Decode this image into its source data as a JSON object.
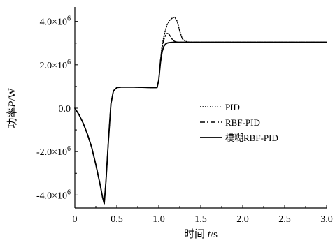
{
  "chart_data": {
    "type": "line",
    "title": "",
    "xlabel": "时间 t/s",
    "ylabel": "功率P/W",
    "xlim": [
      0,
      3.0
    ],
    "ylim": [
      -4600000.0,
      4600000.0
    ],
    "x_ticks": [
      0,
      0.5,
      1.0,
      1.5,
      2.0,
      2.5,
      3.0
    ],
    "x_tick_labels": [
      "0",
      "0.5",
      "1.0",
      "1.5",
      "2.0",
      "2.5",
      "3.0"
    ],
    "y_ticks": [
      -4000000.0,
      -2000000.0,
      0,
      2000000.0,
      4000000.0
    ],
    "y_tick_labels": [
      "-4.0×10⁶",
      "-2.0×10⁶",
      "0.0",
      "2.0×10⁶",
      "4.0×10⁶"
    ],
    "grid": false,
    "legend_position": "right-center",
    "series": [
      {
        "name": "PID",
        "style": "dotted",
        "color": "#000000",
        "x": [
          0,
          0.05,
          0.1,
          0.15,
          0.2,
          0.25,
          0.3,
          0.33,
          0.35,
          0.37,
          0.4,
          0.43,
          0.46,
          0.5,
          0.55,
          0.6,
          0.7,
          0.8,
          0.9,
          0.98,
          1.0,
          1.02,
          1.04,
          1.06,
          1.08,
          1.1,
          1.13,
          1.16,
          1.19,
          1.22,
          1.25,
          1.28,
          1.32,
          1.36,
          1.4,
          1.5,
          1.7,
          2.0,
          2.5,
          3.0
        ],
        "y": [
          0,
          -300000.0,
          -700000.0,
          -1200000.0,
          -1800000.0,
          -2600000.0,
          -3500000.0,
          -4100000.0,
          -4400000.0,
          -3400000.0,
          -1500000.0,
          200000.0,
          800000.0,
          950000.0,
          970000.0,
          970000.0,
          970000.0,
          960000.0,
          950000.0,
          950000.0,
          1300000.0,
          2200000.0,
          2900000.0,
          3300000.0,
          3600000.0,
          3850000.0,
          4050000.0,
          4150000.0,
          4200000.0,
          4000000.0,
          3550000.0,
          3200000.0,
          3080000.0,
          3050000.0,
          3040000.0,
          3040000.0,
          3040000.0,
          3040000.0,
          3040000.0,
          3040000.0
        ]
      },
      {
        "name": "RBF-PID",
        "style": "dashdot",
        "color": "#000000",
        "x": [
          0,
          0.05,
          0.1,
          0.15,
          0.2,
          0.25,
          0.3,
          0.33,
          0.35,
          0.37,
          0.4,
          0.43,
          0.46,
          0.5,
          0.55,
          0.6,
          0.7,
          0.8,
          0.9,
          0.98,
          1.0,
          1.02,
          1.04,
          1.06,
          1.08,
          1.1,
          1.12,
          1.14,
          1.16,
          1.18,
          1.2,
          1.24,
          1.28,
          1.35,
          1.5,
          1.7,
          2.0,
          2.5,
          3.0
        ],
        "y": [
          0,
          -300000.0,
          -700000.0,
          -1200000.0,
          -1800000.0,
          -2600000.0,
          -3500000.0,
          -4100000.0,
          -4400000.0,
          -3400000.0,
          -1500000.0,
          200000.0,
          800000.0,
          950000.0,
          970000.0,
          970000.0,
          970000.0,
          960000.0,
          950000.0,
          950000.0,
          1300000.0,
          2200000.0,
          2800000.0,
          3150000.0,
          3350000.0,
          3450000.0,
          3420000.0,
          3300000.0,
          3180000.0,
          3100000.0,
          3060000.0,
          3040000.0,
          3040000.0,
          3040000.0,
          3040000.0,
          3040000.0,
          3040000.0,
          3040000.0,
          3040000.0
        ]
      },
      {
        "name": "模糊RBF-PID",
        "style": "solid",
        "color": "#000000",
        "x": [
          0,
          0.05,
          0.1,
          0.15,
          0.2,
          0.25,
          0.3,
          0.33,
          0.35,
          0.37,
          0.4,
          0.43,
          0.46,
          0.5,
          0.55,
          0.6,
          0.7,
          0.8,
          0.9,
          0.98,
          1.0,
          1.02,
          1.04,
          1.06,
          1.08,
          1.1,
          1.12,
          1.15,
          1.2,
          1.3,
          1.5,
          1.7,
          2.0,
          2.5,
          3.0
        ],
        "y": [
          0,
          -300000.0,
          -700000.0,
          -1200000.0,
          -1800000.0,
          -2600000.0,
          -3500000.0,
          -4100000.0,
          -4400000.0,
          -3400000.0,
          -1500000.0,
          200000.0,
          800000.0,
          950000.0,
          970000.0,
          970000.0,
          970000.0,
          960000.0,
          950000.0,
          950000.0,
          1300000.0,
          2100000.0,
          2600000.0,
          2850000.0,
          2950000.0,
          3000000.0,
          3020000.0,
          3030000.0,
          3040000.0,
          3040000.0,
          3040000.0,
          3040000.0,
          3040000.0,
          3040000.0,
          3040000.0
        ]
      }
    ]
  }
}
